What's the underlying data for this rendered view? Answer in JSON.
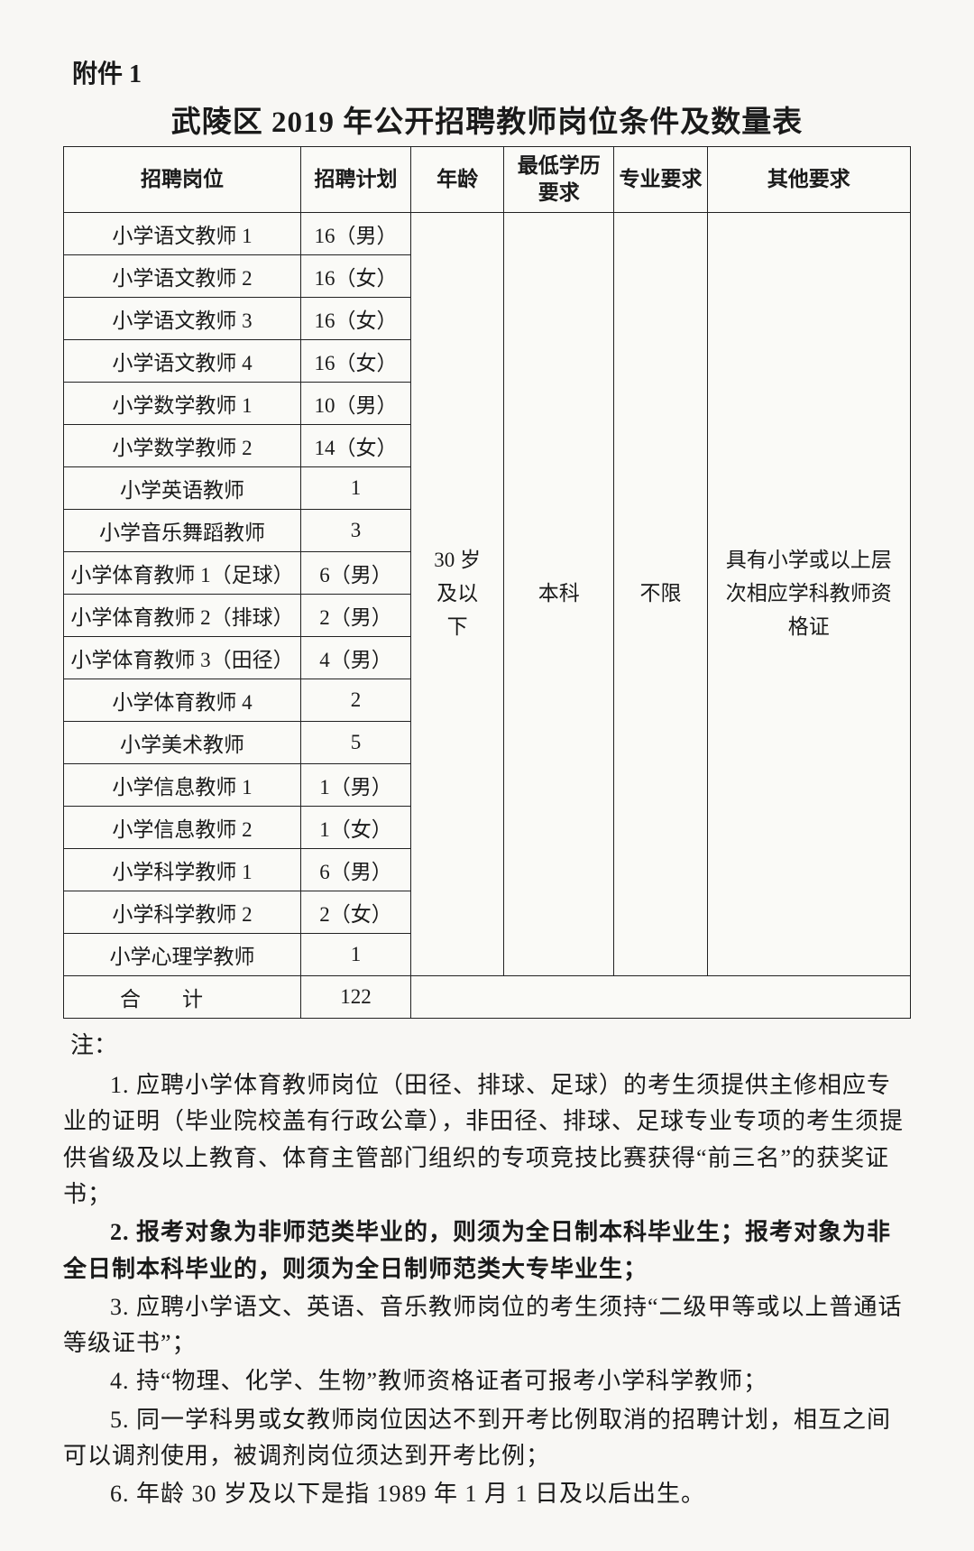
{
  "attachment_label": "附件 1",
  "title": "武陵区 2019 年公开招聘教师岗位条件及数量表",
  "table": {
    "headers": {
      "position": "招聘岗位",
      "plan": "招聘计划",
      "age": "年龄",
      "education": "最低学历要求",
      "major": "专业要求",
      "other": "其他要求"
    },
    "age_value": "30 岁及以下",
    "education_value": "本科",
    "major_value": "不限",
    "other_value": "具有小学或以上层次相应学科教师资格证",
    "rows": [
      {
        "position": "小学语文教师 1",
        "plan": "16（男）"
      },
      {
        "position": "小学语文教师 2",
        "plan": "16（女）"
      },
      {
        "position": "小学语文教师 3",
        "plan": "16（女）"
      },
      {
        "position": "小学语文教师 4",
        "plan": "16（女）"
      },
      {
        "position": "小学数学教师 1",
        "plan": "10（男）"
      },
      {
        "position": "小学数学教师 2",
        "plan": "14（女）"
      },
      {
        "position": "小学英语教师",
        "plan": "1"
      },
      {
        "position": "小学音乐舞蹈教师",
        "plan": "3"
      },
      {
        "position": "小学体育教师 1（足球）",
        "plan": "6（男）"
      },
      {
        "position": "小学体育教师 2（排球）",
        "plan": "2（男）"
      },
      {
        "position": "小学体育教师 3（田径）",
        "plan": "4（男）"
      },
      {
        "position": "小学体育教师 4",
        "plan": "2"
      },
      {
        "position": "小学美术教师",
        "plan": "5"
      },
      {
        "position": "小学信息教师 1",
        "plan": "1（男）"
      },
      {
        "position": "小学信息教师 2",
        "plan": "1（女）"
      },
      {
        "position": "小学科学教师 1",
        "plan": "6（男）"
      },
      {
        "position": "小学科学教师 2",
        "plan": "2（女）"
      },
      {
        "position": "小学心理学教师",
        "plan": "1"
      }
    ],
    "total_label": "合计",
    "total_value": "122"
  },
  "notes_label": "注：",
  "notes": [
    {
      "text": "1. 应聘小学体育教师岗位（田径、排球、足球）的考生须提供主修相应专业的证明（毕业院校盖有行政公章），非田径、排球、足球专业专项的考生须提供省级及以上教育、体育主管部门组织的专项竞技比赛获得“前三名”的获奖证书；",
      "bold": false
    },
    {
      "text": "2. 报考对象为非师范类毕业的，则须为全日制本科毕业生；报考对象为非全日制本科毕业的，则须为全日制师范类大专毕业生；",
      "bold": true
    },
    {
      "text": "3. 应聘小学语文、英语、音乐教师岗位的考生须持“二级甲等或以上普通话等级证书”；",
      "bold": false
    },
    {
      "text": "4. 持“物理、化学、生物”教师资格证者可报考小学科学教师；",
      "bold": false
    },
    {
      "text": "5. 同一学科男或女教师岗位因达不到开考比例取消的招聘计划，相互之间可以调剂使用，被调剂岗位须达到开考比例；",
      "bold": false
    },
    {
      "text": "6. 年龄 30 岁及以下是指 1989 年 1 月 1 日及以后出生。",
      "bold": false
    }
  ],
  "style": {
    "background": "#f8f7f4",
    "border_color": "#222222",
    "title_fontsize": 33,
    "body_fontsize": 23,
    "notes_fontsize": 26
  }
}
